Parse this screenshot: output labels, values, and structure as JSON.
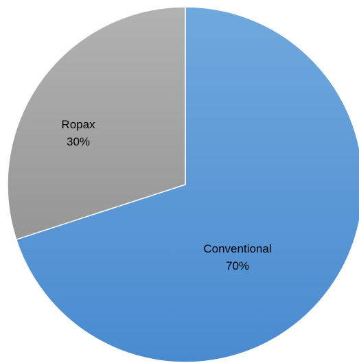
{
  "chart_data": {
    "type": "pie",
    "slices": [
      {
        "label": "Conventional",
        "value": 70,
        "percent_label": "70%",
        "color": "#5b9bd5"
      },
      {
        "label": "Ropax",
        "value": 30,
        "percent_label": "30%",
        "color": "#a5a5a5"
      }
    ],
    "start_angle_deg": 0,
    "direction": "clockwise",
    "legend": "none",
    "data_labels": "inside"
  }
}
